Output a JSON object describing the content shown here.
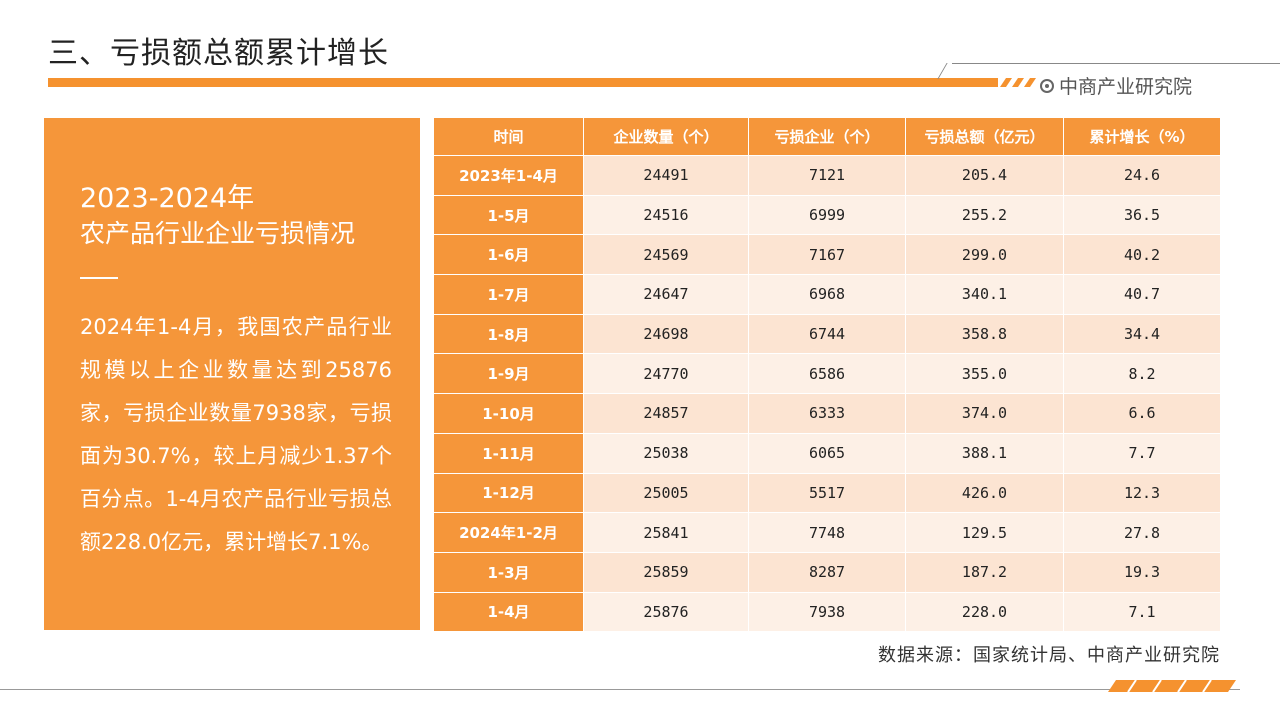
{
  "page": {
    "title": "三、亏损额总额累计增长",
    "brand": "中商产业研究院",
    "source": "数据来源：国家统计局、中商产业研究院"
  },
  "panel": {
    "year": "2023-2024年",
    "subtitle": "农产品行业企业亏损情况",
    "body": "2024年1-4月，我国农产品行业规模以上企业数量达到25876家，亏损企业数量7938家，亏损面为30.7%，较上月减少1.37个百分点。1-4月农产品行业亏损总额228.0亿元，累计增长7.1%。"
  },
  "table": {
    "headers": [
      "时间",
      "企业数量（个）",
      "亏损企业（个）",
      "亏损总额（亿元）",
      "累计增长（%）"
    ],
    "rows": [
      [
        "2023年1-4月",
        "24491",
        "7121",
        "205.4",
        "24.6"
      ],
      [
        "1-5月",
        "24516",
        "6999",
        "255.2",
        "36.5"
      ],
      [
        "1-6月",
        "24569",
        "7167",
        "299.0",
        "40.2"
      ],
      [
        "1-7月",
        "24647",
        "6968",
        "340.1",
        "40.7"
      ],
      [
        "1-8月",
        "24698",
        "6744",
        "358.8",
        "34.4"
      ],
      [
        "1-9月",
        "24770",
        "6586",
        "355.0",
        "8.2"
      ],
      [
        "1-10月",
        "24857",
        "6333",
        "374.0",
        "6.6"
      ],
      [
        "1-11月",
        "25038",
        "6065",
        "388.1",
        "7.7"
      ],
      [
        "1-12月",
        "25005",
        "5517",
        "426.0",
        "12.3"
      ],
      [
        "2024年1-2月",
        "25841",
        "7748",
        "129.5",
        "27.8"
      ],
      [
        "1-3月",
        "25859",
        "8287",
        "187.2",
        "19.3"
      ],
      [
        "1-4月",
        "25876",
        "7938",
        "228.0",
        "7.1"
      ]
    ]
  },
  "colors": {
    "accent": "#f5963a",
    "row_alt": "#fce4d2",
    "row_plain": "#fdf0e6"
  }
}
